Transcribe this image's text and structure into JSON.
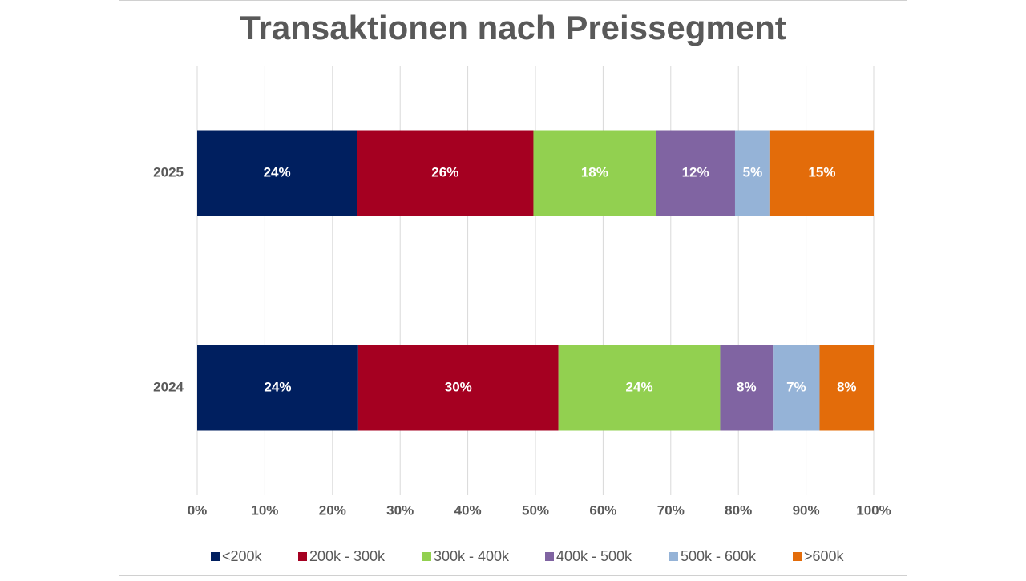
{
  "chart_data": {
    "type": "stacked-bar-horizontal",
    "title": "Transaktionen nach Preissegment",
    "categories": [
      "2025",
      "2024"
    ],
    "series": [
      {
        "name": "<200k",
        "color": "#001f5f",
        "values": [
          23.6,
          23.8
        ],
        "value_labels": [
          "24%",
          "24%"
        ]
      },
      {
        "name": "200k - 300k",
        "color": "#a50021",
        "values": [
          26.1,
          29.6
        ],
        "value_labels": [
          "26%",
          "30%"
        ]
      },
      {
        "name": "300k - 400k",
        "color": "#92d050",
        "values": [
          18.1,
          23.9
        ],
        "value_labels": [
          "18%",
          "24%"
        ]
      },
      {
        "name": "400k - 500k",
        "color": "#8064a2",
        "values": [
          11.7,
          7.8
        ],
        "value_labels": [
          "12%",
          "8%"
        ]
      },
      {
        "name": "500k - 600k",
        "color": "#95b3d7",
        "values": [
          5.2,
          6.9
        ],
        "value_labels": [
          "5%",
          "7%"
        ]
      },
      {
        "name": ">600k",
        "color": "#e36c0a",
        "values": [
          15.3,
          8.0
        ],
        "value_labels": [
          "15%",
          "8%"
        ]
      }
    ],
    "xlim": [
      0,
      100
    ],
    "xticks": [
      {
        "value": 0,
        "label": "0%"
      },
      {
        "value": 10,
        "label": "10%"
      },
      {
        "value": 20,
        "label": "20%"
      },
      {
        "value": 30,
        "label": "30%"
      },
      {
        "value": 40,
        "label": "40%"
      },
      {
        "value": 50,
        "label": "50%"
      },
      {
        "value": 60,
        "label": "60%"
      },
      {
        "value": 70,
        "label": "70%"
      },
      {
        "value": 80,
        "label": "80%"
      },
      {
        "value": 90,
        "label": "90%"
      },
      {
        "value": 100,
        "label": "100%"
      }
    ],
    "grid": true,
    "legend": "bottom"
  }
}
